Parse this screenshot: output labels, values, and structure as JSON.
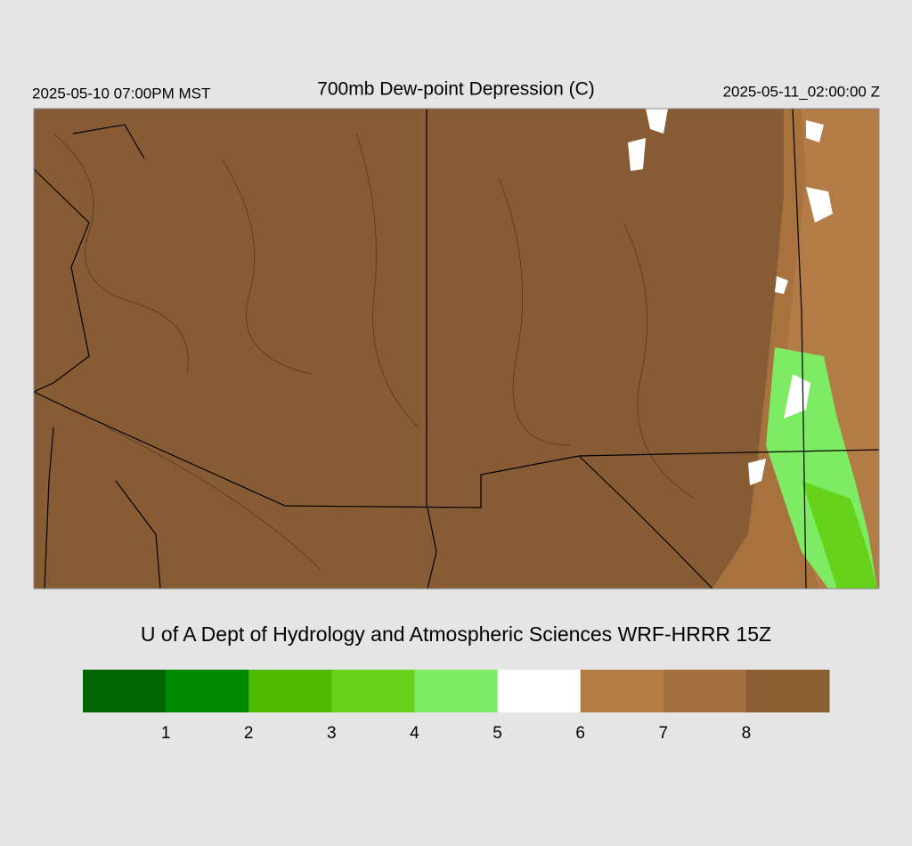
{
  "header": {
    "title": "700mb Dew-point Depression (C)",
    "valid_local": "2025-05-10 07:00PM MST",
    "valid_utc": "2025-05-11_02:00:00 Z"
  },
  "credit": "U of A Dept of Hydrology and Atmospheric Sciences WRF-HRRR 15Z",
  "colorbar": {
    "colors": [
      "#006400",
      "#008a00",
      "#4fbb00",
      "#66d31a",
      "#7deb64",
      "#ffffff",
      "#b37c46",
      "#a5703f",
      "#8b5e34"
    ],
    "ticks": [
      1,
      2,
      3,
      4,
      5,
      6,
      7,
      8
    ]
  }
}
